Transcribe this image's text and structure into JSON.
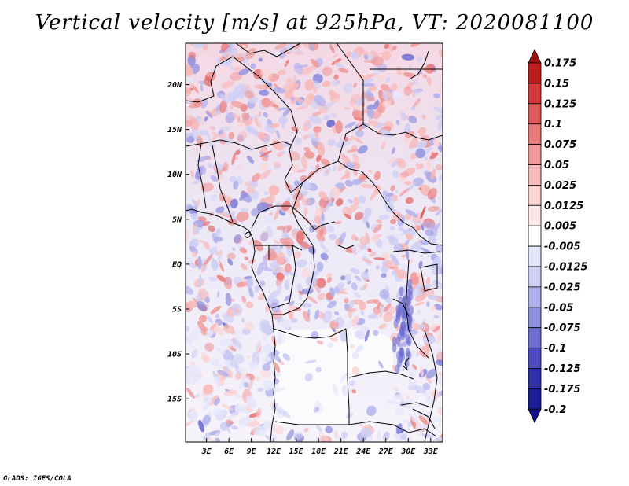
{
  "title": "Vertical velocity [m/s] at 925hPa, VT: 2020081100",
  "footer": "GrADS: IGES/COLA",
  "map": {
    "lat_labels": [
      "20N",
      "15N",
      "10N",
      "5N",
      "EQ",
      "5S",
      "10S",
      "15S"
    ],
    "lat_values": [
      20,
      15,
      10,
      5,
      0,
      -5,
      -10,
      -15
    ],
    "lon_labels": [
      "3E",
      "6E",
      "9E",
      "12E",
      "15E",
      "18E",
      "21E",
      "24E",
      "27E",
      "30E",
      "33E"
    ],
    "lon_values": [
      3,
      6,
      9,
      12,
      15,
      18,
      21,
      24,
      27,
      30,
      33
    ],
    "lat_range": [
      -19.8,
      24.6
    ],
    "lon_range": [
      0.2,
      34.6
    ]
  },
  "colorbar": {
    "labels": [
      "0.175",
      "0.15",
      "0.125",
      "0.1",
      "0.075",
      "0.05",
      "0.025",
      "0.0125",
      "0.005",
      "-0.005",
      "-0.0125",
      "-0.025",
      "-0.05",
      "-0.075",
      "-0.1",
      "-0.125",
      "-0.175",
      "-0.2"
    ],
    "colors": [
      "#a01010",
      "#c01e1e",
      "#d43a3a",
      "#e05a5a",
      "#e87a7a",
      "#f09a9a",
      "#f7baba",
      "#fbd4d4",
      "#fde8e8",
      "#ffffff",
      "#e6e6fa",
      "#cfcff4",
      "#b0b0ec",
      "#9090e0",
      "#6e6ed2",
      "#4e4ec0",
      "#3030a8",
      "#1c1c94",
      "#10108a"
    ]
  }
}
